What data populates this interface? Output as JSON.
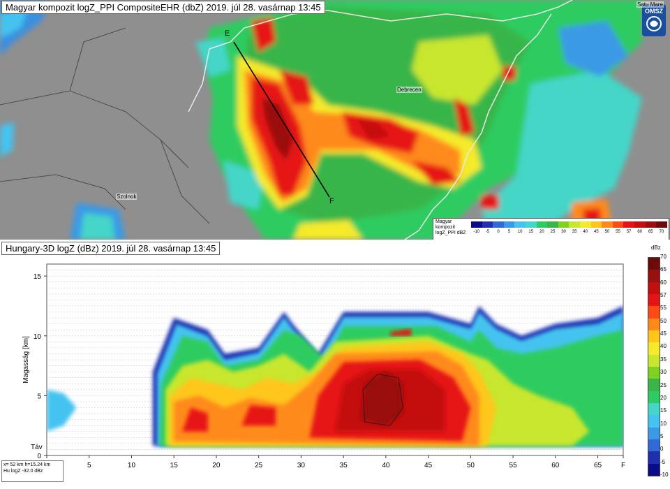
{
  "map": {
    "title": "Magyar kompozit logZ_PPI CompositeEHR (dbZ) 2019. júl 28. vasárnap 13:45",
    "logo_text": "OMSZ",
    "cities": [
      "Debrecen",
      "Szolnok",
      "Satu Mare"
    ],
    "section_endpoints": {
      "start": "E",
      "end": "F"
    },
    "legend": {
      "title": "Magyar kompozit logZ_PPI dBZ",
      "labels": [
        "-10",
        "-5",
        "0",
        "5",
        "10",
        "15",
        "20",
        "25",
        "30",
        "35",
        "40",
        "45",
        "50",
        "55",
        "57",
        "60",
        "65",
        "70"
      ],
      "colors": [
        "#0a0a8c",
        "#1e2fb0",
        "#2f6ad6",
        "#3a9ae6",
        "#45c3f0",
        "#44d6c8",
        "#2ecc60",
        "#39b54a",
        "#7ed321",
        "#c8e62e",
        "#f4ea2a",
        "#ffc61a",
        "#ff8a1a",
        "#ff4a14",
        "#e61414",
        "#c40f0f",
        "#991010",
        "#6e0a0a"
      ]
    }
  },
  "section": {
    "title": "Hungary-3D logZ (dBz) 2019. júl 28. vasárnap 13:45",
    "ylabel": "Magasság [km]",
    "xlabel_start": "Táv",
    "x_ticks": [
      "0",
      "5",
      "10",
      "15",
      "20",
      "25",
      "30",
      "35",
      "40",
      "45",
      "50",
      "55",
      "60",
      "65",
      "F"
    ],
    "y_ticks": [
      "0",
      "5",
      "10",
      "15"
    ],
    "scale_unit": "dBz",
    "scale_labels": [
      "70",
      "65",
      "60",
      "57",
      "55",
      "50",
      "45",
      "40",
      "35",
      "30",
      "25",
      "20",
      "15",
      "10",
      "5",
      "0",
      "-5",
      "-10"
    ],
    "readout_line1": "x= 52 km h=15.24 km",
    "readout_line2": "Hu logZ   -32.0 dBz"
  },
  "chart_data": {
    "type": "heatmap",
    "title": "Hungary-3D logZ (dBz) 2019. júl 28. vasárnap 13:45",
    "xlabel": "Táv",
    "ylabel": "Magasság [km]",
    "xlim": [
      0,
      68
    ],
    "ylim": [
      0,
      16
    ],
    "x_ticks": [
      0,
      5,
      10,
      15,
      20,
      25,
      30,
      35,
      40,
      45,
      50,
      55,
      60,
      65
    ],
    "y_ticks": [
      0,
      5,
      10,
      15
    ],
    "color_scale_dbz": [
      -10,
      -5,
      0,
      5,
      10,
      15,
      20,
      25,
      30,
      35,
      40,
      45,
      50,
      55,
      57,
      60,
      65,
      70
    ],
    "echo_top_km": [
      [
        0,
        5.5
      ],
      [
        2,
        5
      ],
      [
        3,
        4
      ],
      [
        12,
        7
      ],
      [
        15,
        11.5
      ],
      [
        19,
        10.5
      ],
      [
        21,
        8
      ],
      [
        25,
        9
      ],
      [
        28,
        12
      ],
      [
        29,
        11
      ],
      [
        32,
        8
      ],
      [
        35,
        12
      ],
      [
        45,
        12
      ],
      [
        50,
        11
      ],
      [
        51,
        12.5
      ],
      [
        53,
        11
      ],
      [
        56,
        10
      ],
      [
        60,
        11
      ],
      [
        65,
        11.5
      ],
      [
        68,
        12.5
      ]
    ],
    "max_core_dbz": 65,
    "max_core_extent": {
      "x_km": [
        36,
        42
      ],
      "height_km": [
        3,
        7
      ]
    }
  }
}
